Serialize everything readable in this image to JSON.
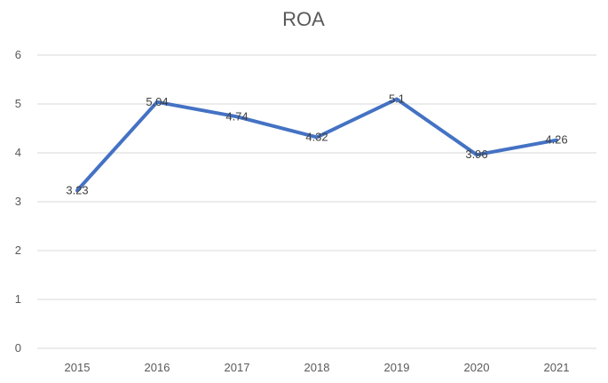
{
  "chart_data": {
    "type": "line",
    "title": "ROA",
    "xlabel": "",
    "ylabel": "",
    "categories": [
      "2015",
      "2016",
      "2017",
      "2018",
      "2019",
      "2020",
      "2021"
    ],
    "series": [
      {
        "values": [
          3.23,
          5.04,
          4.74,
          4.32,
          5.1,
          3.96,
          4.26
        ],
        "color": "#4472c4"
      }
    ],
    "data_labels": [
      "3.23",
      "5.04",
      "4.74",
      "4.32",
      "5.1",
      "3.96",
      "4.26"
    ],
    "ylim": [
      0,
      6
    ],
    "yticks": [
      "0",
      "1",
      "2",
      "3",
      "4",
      "5",
      "6"
    ],
    "grid": true,
    "legend": "none"
  }
}
